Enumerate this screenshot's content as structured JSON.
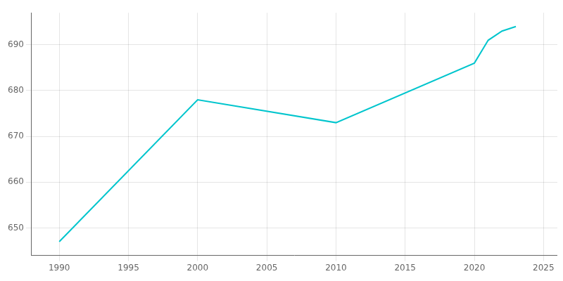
{
  "chart_data": {
    "type": "line",
    "x": [
      1990,
      2000,
      2010,
      2020,
      2021,
      2022,
      2023
    ],
    "values": [
      647,
      678,
      673,
      686,
      691,
      693,
      694
    ],
    "color": "#00c5cd",
    "xlim": [
      1988,
      2026
    ],
    "ylim": [
      644,
      697
    ],
    "xticks": [
      1990,
      1995,
      2000,
      2005,
      2010,
      2015,
      2020,
      2025
    ],
    "yticks": [
      650,
      660,
      670,
      680,
      690
    ],
    "grid": true
  }
}
